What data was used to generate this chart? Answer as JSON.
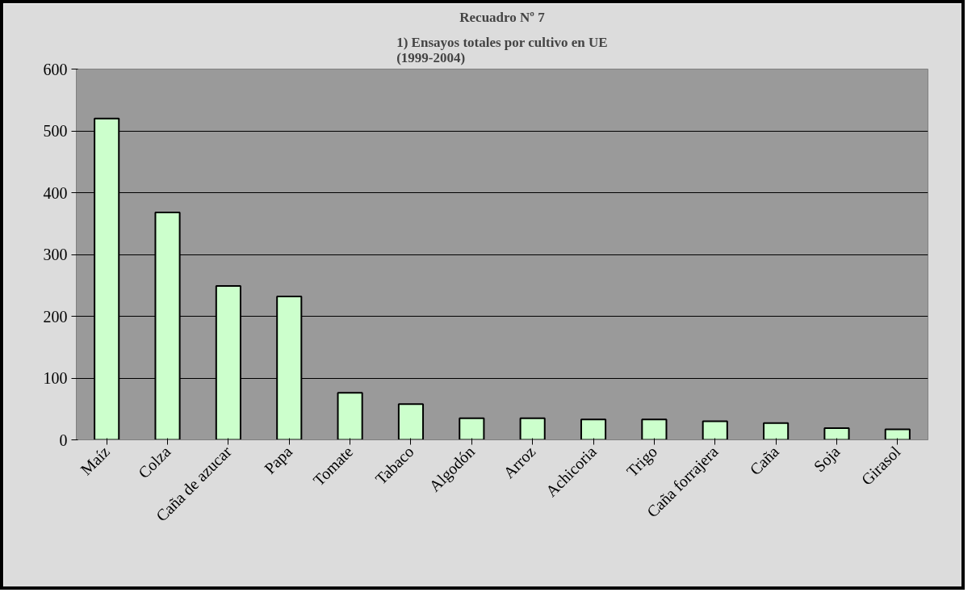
{
  "chart_data": {
    "type": "bar",
    "title": "Recuadro Nº 7",
    "subtitle": "1) Ensayos totales por cultivo en UE\n(1999-2004)",
    "categories": [
      "Maíz",
      "Colza",
      "Caña de azucar",
      "Papa",
      "Tomate",
      "Tabaco",
      "Algodón",
      "Arroz",
      "Achicoria",
      "Trigo",
      "Caña forrajera",
      "Caña",
      "Soja",
      "Girasol"
    ],
    "values": [
      520,
      368,
      249,
      232,
      76,
      58,
      35,
      35,
      33,
      33,
      30,
      27,
      19,
      17
    ],
    "color": "#ccffcc",
    "ylim": [
      0,
      600
    ],
    "yticks": [
      0,
      100,
      200,
      300,
      400,
      500,
      600
    ],
    "grid": "y"
  }
}
